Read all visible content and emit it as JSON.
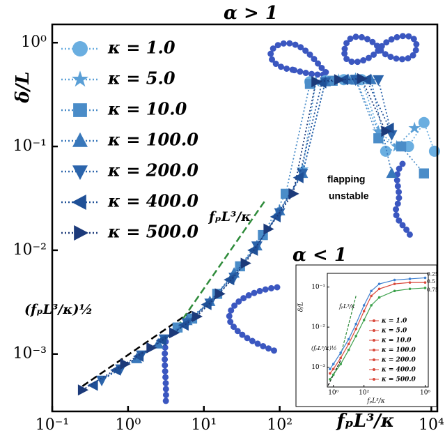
{
  "chart_data": [
    {
      "type": "scatter-line",
      "title": "α > 1",
      "x_label": "fₚL³/κ",
      "y_label": "δ/L",
      "log_x": true,
      "log_y": true,
      "xlim": [
        0.1,
        12000
      ],
      "ylim": [
        0.00028,
        1.5
      ],
      "xticks": [
        {
          "value": 0.1,
          "label": "10⁻¹"
        },
        {
          "value": 1,
          "label": "10⁰"
        },
        {
          "value": 10,
          "label": "10¹"
        },
        {
          "value": 100,
          "label": "10²"
        },
        {
          "value": 10000,
          "label": "10⁴"
        }
      ],
      "yticks": [
        {
          "value": 0.001,
          "label": "10⁻³"
        },
        {
          "value": 0.01,
          "label": "10⁻²"
        },
        {
          "value": 0.1,
          "label": "10⁻¹"
        },
        {
          "value": 1,
          "label": "10⁰"
        }
      ],
      "legend": "upper left",
      "annotations": [
        "α < 1",
        "flapping",
        "unstable",
        "(fₚL³/κ)½",
        "fₚL³/κ"
      ],
      "fits": [
        {
          "color": "#000000",
          "x": [
            0.25,
            7
          ],
          "values": [
            0.00049,
            0.0026
          ]
        },
        {
          "color": "#2e8b3a",
          "x": [
            4.4,
            66
          ],
          "values": [
            0.0018,
            0.031
          ]
        }
      ],
      "series": [
        {
          "name": "κ = 1.0",
          "marker": "circle",
          "color": "#6aaee0",
          "x": [
            250,
            400,
            700,
            1200,
            2500,
            5000,
            8000,
            11000
          ],
          "values": [
            0.42,
            0.43,
            0.44,
            0.44,
            0.09,
            0.1,
            0.17,
            0.09
          ]
        },
        {
          "name": "κ = 5.0",
          "marker": "star",
          "color": "#5a9fd6",
          "x": [
            200,
            300,
            600,
            1000,
            2000,
            3500,
            6000
          ],
          "values": [
            0.06,
            0.42,
            0.44,
            0.45,
            0.14,
            0.1,
            0.15
          ]
        },
        {
          "name": "κ = 10.0",
          "marker": "square",
          "color": "#4a8cc8",
          "x": [
            4.5,
            7,
            15,
            30,
            60,
            120,
            250,
            500,
            1000,
            2000,
            4000,
            8000
          ],
          "values": [
            0.0018,
            0.0022,
            0.0038,
            0.007,
            0.014,
            0.035,
            0.4,
            0.43,
            0.44,
            0.12,
            0.1,
            0.055
          ]
        },
        {
          "name": "κ = 100.0",
          "marker": "up",
          "color": "#3978bb",
          "x": [
            1.3,
            2.5,
            6,
            12,
            25,
            50,
            100,
            200,
            400,
            800,
            1600,
            3000
          ],
          "values": [
            0.0009,
            0.00125,
            0.0021,
            0.0032,
            0.006,
            0.011,
            0.024,
            0.055,
            0.42,
            0.44,
            0.44,
            0.055
          ]
        },
        {
          "name": "κ = 200.0",
          "marker": "down",
          "color": "#2b64ab",
          "x": [
            0.45,
            0.8,
            1.5,
            3,
            6,
            12,
            25,
            50,
            100,
            200,
            400,
            1000,
            2000,
            3000
          ],
          "values": [
            0.00056,
            0.00072,
            0.00098,
            0.0014,
            0.002,
            0.0031,
            0.0055,
            0.011,
            0.023,
            0.055,
            0.42,
            0.44,
            0.44,
            0.13
          ]
        },
        {
          "name": "κ = 400.0",
          "marker": "left",
          "color": "#1f5097",
          "x": [
            0.35,
            0.7,
            1.4,
            2.8,
            5.5,
            11,
            22,
            45,
            90,
            180,
            360,
            700,
            1400,
            2800
          ],
          "values": [
            0.0005,
            0.0007,
            0.00095,
            0.00135,
            0.0019,
            0.003,
            0.0052,
            0.01,
            0.021,
            0.05,
            0.41,
            0.44,
            0.44,
            0.15
          ]
        },
        {
          "name": "κ = 500.0",
          "marker": "right",
          "color": "#1c3a7a",
          "x": [
            0.25,
            0.9,
            2,
            4,
            8,
            16,
            35,
            70,
            150,
            300,
            600,
            1200,
            2500
          ],
          "values": [
            0.00045,
            0.0008,
            0.00115,
            0.0016,
            0.0023,
            0.0038,
            0.0075,
            0.016,
            0.035,
            0.42,
            0.44,
            0.45,
            0.14
          ]
        }
      ]
    },
    {
      "type": "inset-line",
      "x_label": "fₚL³/κ",
      "y_label": "δ/L",
      "log_x": true,
      "log_y": true,
      "xlim": [
        0.4,
        1600000
      ],
      "ylim": [
        0.00032,
        0.22
      ],
      "xticks": [
        {
          "value": 1,
          "label": "10⁰"
        },
        {
          "value": 100,
          "label": "10²"
        },
        {
          "value": 1000000,
          "label": "10⁶"
        }
      ],
      "yticks": [
        {
          "value": 0.001,
          "label": "10⁻³"
        },
        {
          "value": 0.01,
          "label": "10⁻²"
        },
        {
          "value": 0.1,
          "label": "10⁻¹"
        }
      ],
      "legend": [
        "κ = 1.0",
        "κ = 5.0",
        "κ = 10.0",
        "κ = 100.0",
        "κ = 200.0",
        "κ = 400.0",
        "κ = 500.0"
      ],
      "legend_color": "#d9483b",
      "annotations": [
        "(fₚL³/κ)½",
        "fₚL³/κ"
      ],
      "fits": [
        {
          "color": "#000000",
          "x": [
            0.45,
            3
          ],
          "values": [
            0.00035,
            0.0015
          ]
        },
        {
          "color": "#2e8b3a",
          "x": [
            3,
            30
          ],
          "values": [
            0.002,
            0.06
          ]
        }
      ],
      "series": [
        {
          "name": "0.25",
          "color": "#3d7fd0",
          "x": [
            0.6,
            1,
            3,
            10,
            30,
            100,
            300,
            1000,
            10000,
            100000,
            1000000
          ],
          "values": [
            0.0009,
            0.0012,
            0.0023,
            0.005,
            0.012,
            0.035,
            0.08,
            0.12,
            0.15,
            0.16,
            0.17
          ]
        },
        {
          "name": "0.5",
          "color": "#d9483b",
          "x": [
            0.6,
            1,
            3,
            10,
            30,
            100,
            300,
            1000,
            10000,
            100000,
            1000000
          ],
          "values": [
            0.0007,
            0.0009,
            0.0017,
            0.0038,
            0.009,
            0.025,
            0.06,
            0.09,
            0.12,
            0.13,
            0.13
          ]
        },
        {
          "name": "0.75",
          "color": "#3aa04a",
          "x": [
            0.6,
            1,
            3,
            10,
            30,
            100,
            300,
            1000,
            10000,
            100000,
            1000000
          ],
          "values": [
            0.0005,
            0.00065,
            0.0012,
            0.0027,
            0.006,
            0.015,
            0.035,
            0.055,
            0.08,
            0.09,
            0.095
          ]
        }
      ]
    }
  ]
}
